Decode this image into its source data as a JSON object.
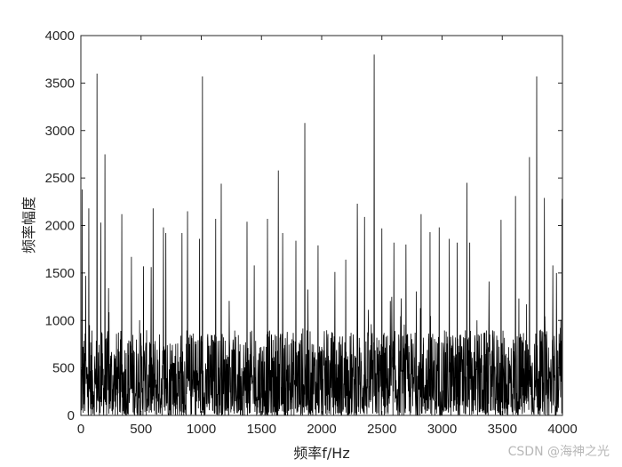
{
  "chart_data": {
    "type": "line",
    "xlabel": "频率f/Hz",
    "ylabel": "频率幅度",
    "xlim": [
      0,
      4000
    ],
    "ylim": [
      0,
      4000
    ],
    "xticks": [
      0,
      500,
      1000,
      1500,
      2000,
      2500,
      3000,
      3500,
      4000
    ],
    "yticks": [
      0,
      500,
      1000,
      1500,
      2000,
      2500,
      3000,
      3500,
      4000
    ],
    "grid": false,
    "line_color": "#000000",
    "typical_amplitude_range": [
      0,
      1000
    ],
    "peaks": [
      [
        10,
        2380
      ],
      [
        40,
        1470
      ],
      [
        66,
        2180
      ],
      [
        133,
        3600
      ],
      [
        165,
        2030
      ],
      [
        200,
        2750
      ],
      [
        230,
        1340
      ],
      [
        340,
        2120
      ],
      [
        420,
        1670
      ],
      [
        520,
        1570
      ],
      [
        600,
        2180
      ],
      [
        686,
        1980
      ],
      [
        705,
        1920
      ],
      [
        840,
        1920
      ],
      [
        885,
        2150
      ],
      [
        985,
        1860
      ],
      [
        1010,
        3570
      ],
      [
        1120,
        2070
      ],
      [
        1165,
        2440
      ],
      [
        1380,
        2040
      ],
      [
        1440,
        1580
      ],
      [
        1550,
        2070
      ],
      [
        1640,
        2580
      ],
      [
        1675,
        1920
      ],
      [
        1785,
        1840
      ],
      [
        1860,
        3080
      ],
      [
        1970,
        1790
      ],
      [
        2110,
        1510
      ],
      [
        2200,
        1640
      ],
      [
        2295,
        2230
      ],
      [
        2355,
        2090
      ],
      [
        2435,
        3800
      ],
      [
        2500,
        1970
      ],
      [
        2600,
        1820
      ],
      [
        2700,
        1800
      ],
      [
        2825,
        2120
      ],
      [
        2900,
        1930
      ],
      [
        2975,
        1980
      ],
      [
        3060,
        1860
      ],
      [
        3125,
        1820
      ],
      [
        3205,
        2450
      ],
      [
        3230,
        1820
      ],
      [
        3390,
        1410
      ],
      [
        3490,
        2060
      ],
      [
        3610,
        2310
      ],
      [
        3725,
        2720
      ],
      [
        3785,
        3570
      ],
      [
        3850,
        2290
      ],
      [
        3920,
        1580
      ],
      [
        3950,
        1500
      ],
      [
        3995,
        2280
      ]
    ]
  },
  "watermark": "CSDN @海神之光"
}
